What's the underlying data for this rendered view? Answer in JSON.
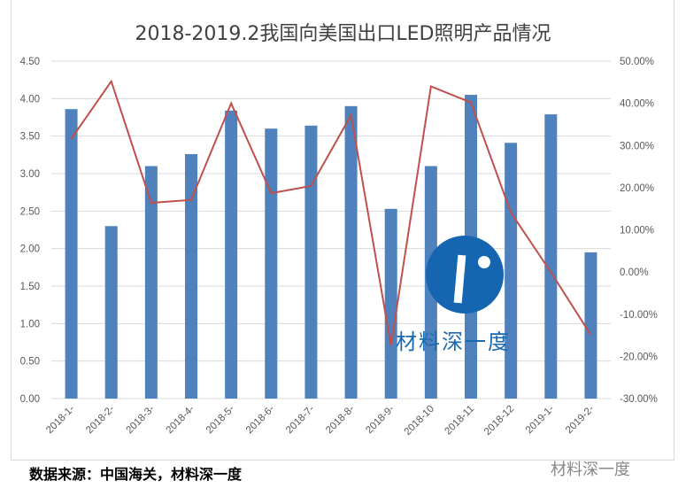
{
  "chart_data": {
    "type": "bar+line",
    "title": "2018-2019.2我国向美国出口LED照明产品情况",
    "categories": [
      "2018-1-",
      "2018-2-",
      "2018-3-",
      "2018-4-",
      "2018-5-",
      "2018-6-",
      "2018-7-",
      "2018-8-",
      "2018-9-",
      "2018-10",
      "2018-11",
      "2018-12",
      "2019-1-",
      "2019-2-"
    ],
    "series": [
      {
        "type": "bar",
        "axis": "left",
        "color": "#4f81bd",
        "values": [
          3.86,
          2.3,
          3.1,
          3.26,
          3.84,
          3.6,
          3.64,
          3.9,
          2.53,
          3.1,
          4.05,
          3.41,
          3.79,
          1.95
        ]
      },
      {
        "type": "line",
        "axis": "right",
        "color": "#c0504d",
        "values": [
          31.6,
          45.2,
          16.4,
          17.1,
          40.0,
          18.7,
          20.4,
          37.2,
          -17.4,
          44.0,
          40.2,
          14.1,
          0.0,
          -14.9
        ]
      }
    ],
    "left_axis": {
      "min": 0,
      "max": 4.5,
      "step": 0.5,
      "ticks": [
        "0.00",
        "0.50",
        "1.00",
        "1.50",
        "2.00",
        "2.50",
        "3.00",
        "3.50",
        "4.00",
        "4.50"
      ]
    },
    "right_axis": {
      "min": -30,
      "max": 50,
      "step": 10,
      "ticks": [
        "-30.00%",
        "-20.00%",
        "-10.00%",
        "0.00%",
        "10.00%",
        "20.00%",
        "30.00%",
        "40.00%",
        "50.00%"
      ]
    },
    "grid": true,
    "legend": "none"
  },
  "source": "数据来源：中国海关，材料深一度",
  "watermark_corner": "材料深一度",
  "watermark_center": "材料深一度"
}
